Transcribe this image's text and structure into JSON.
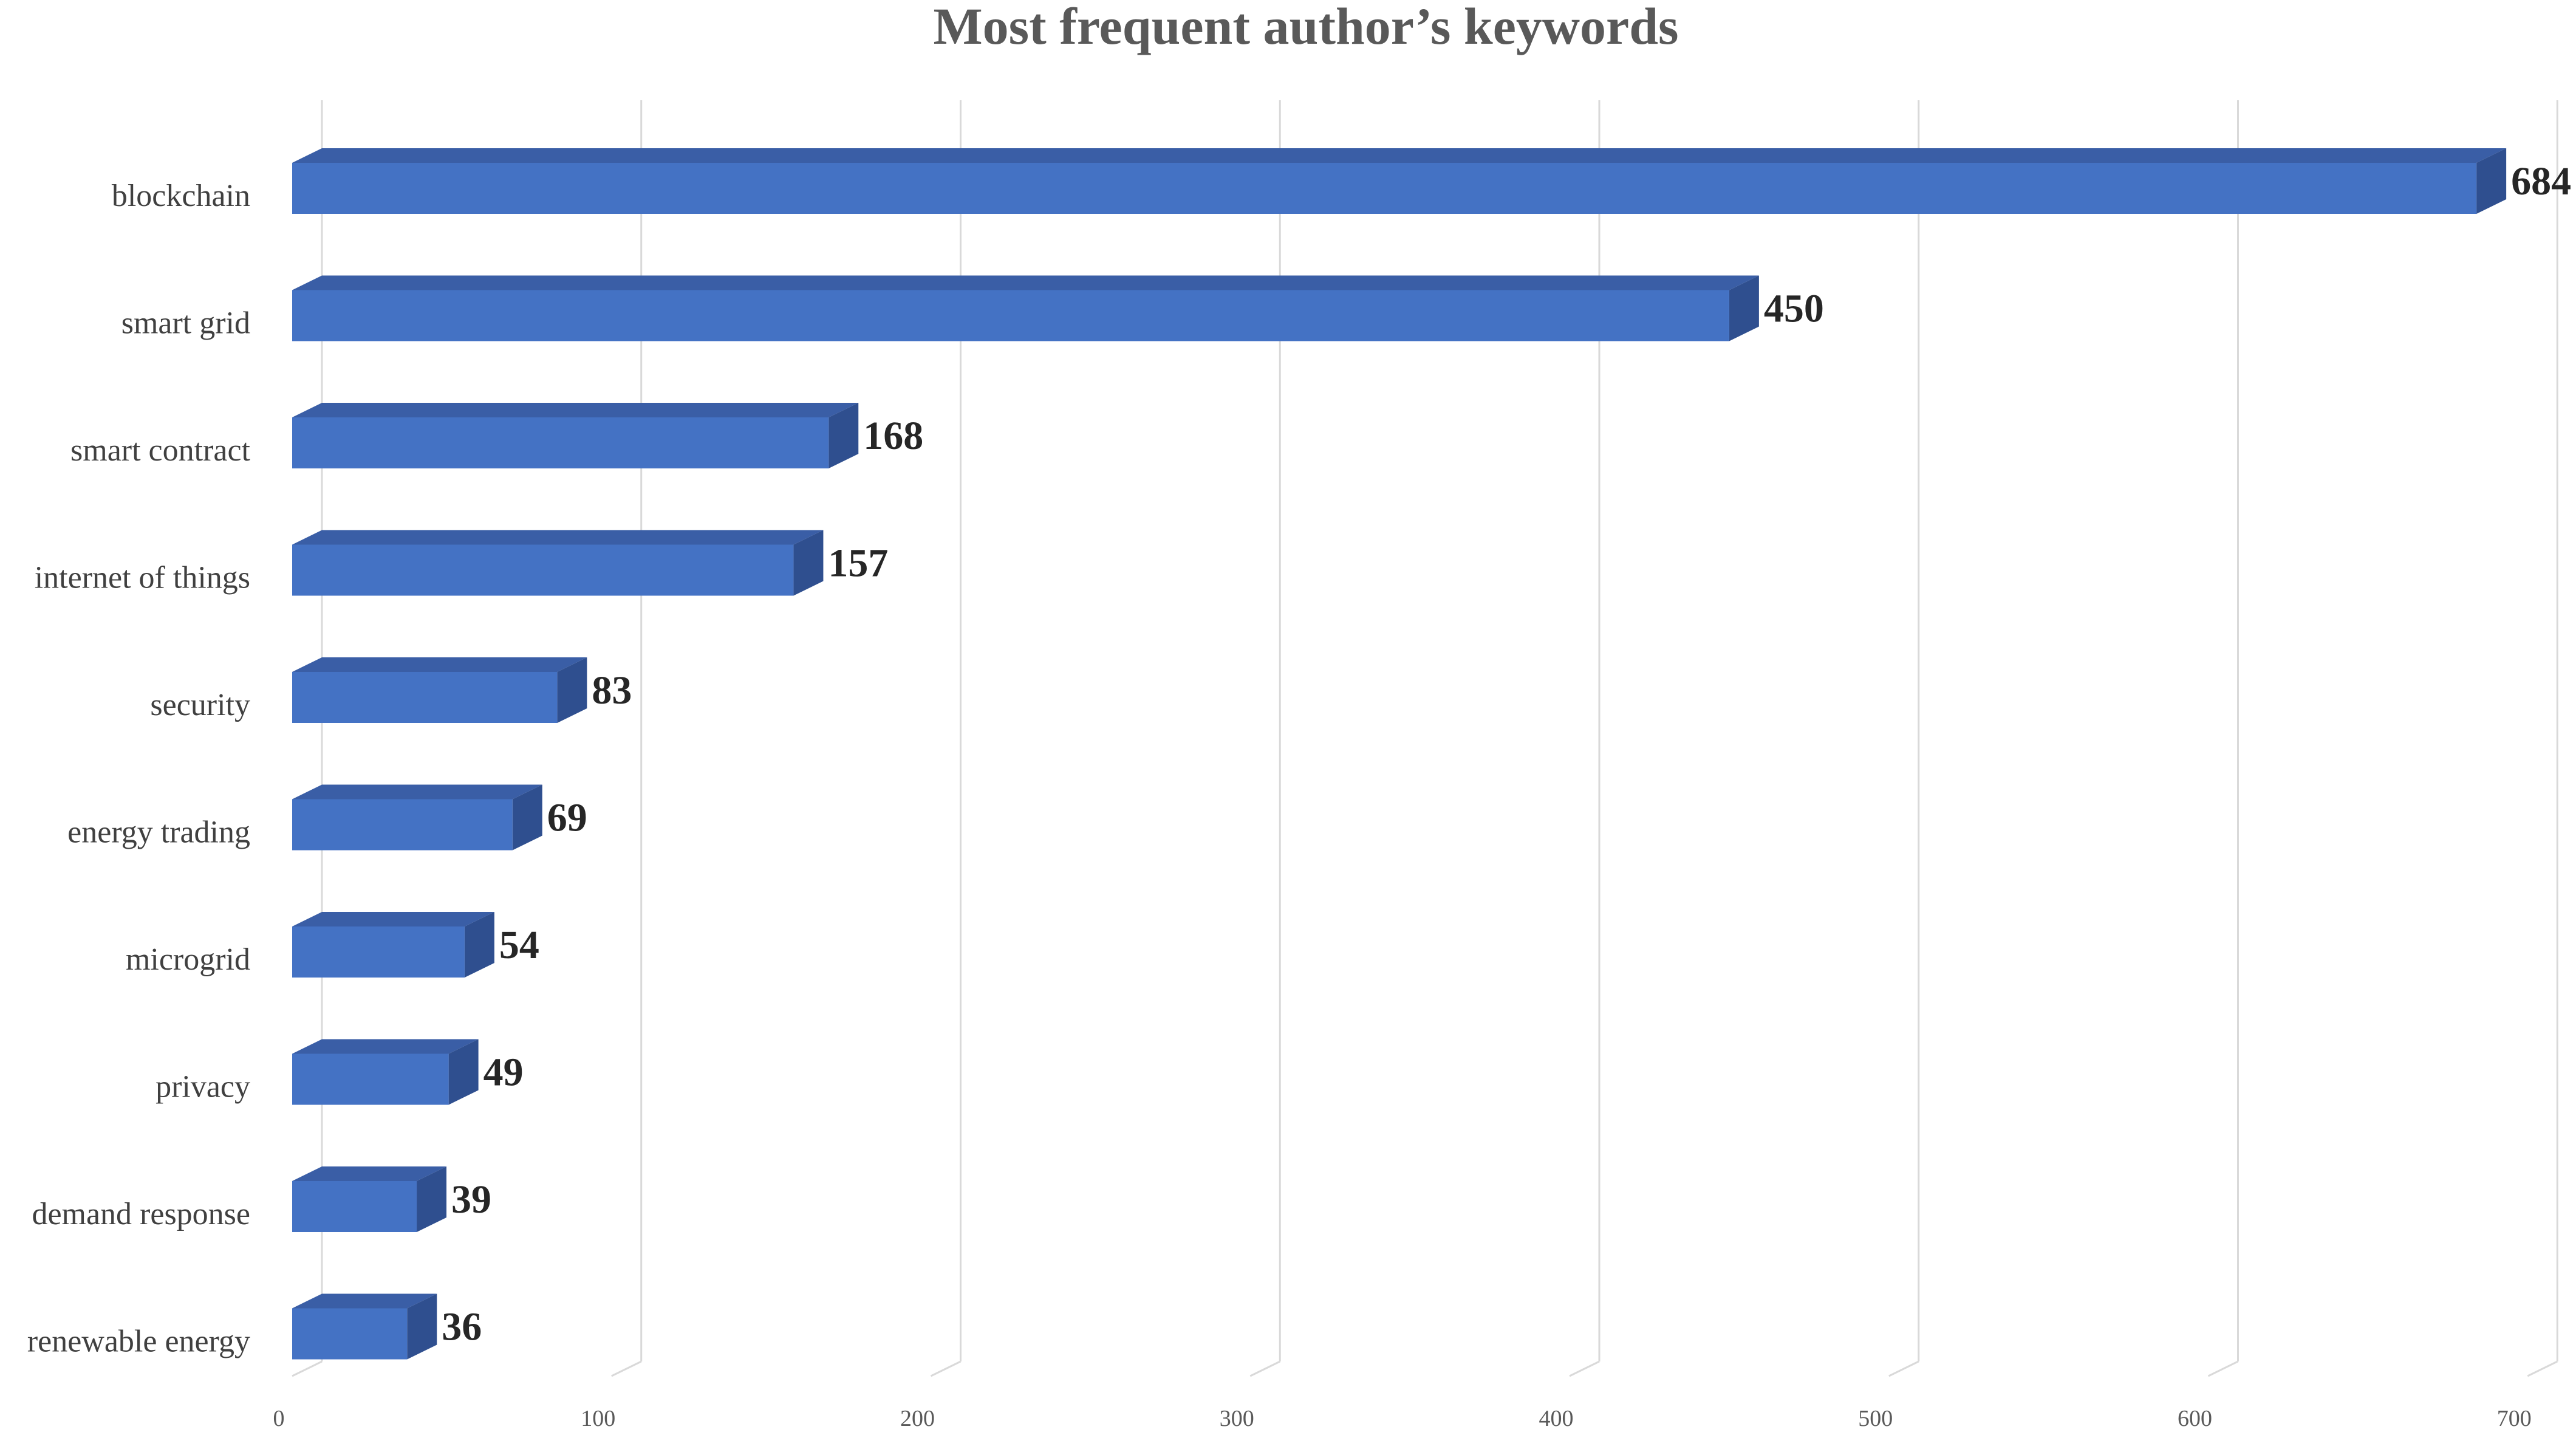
{
  "chart_data": {
    "type": "bar",
    "orientation": "horizontal",
    "style": "3d",
    "title": "Most frequent author’s keywords",
    "xlabel": "",
    "ylabel": "",
    "categories": [
      "blockchain",
      "smart grid",
      "smart contract",
      "internet of things",
      "security",
      "energy trading",
      "microgrid",
      "privacy",
      "demand response",
      "renewable energy"
    ],
    "values": [
      684,
      450,
      168,
      157,
      83,
      69,
      54,
      49,
      39,
      36
    ],
    "xlim": [
      0,
      700
    ],
    "x_ticks": [
      0,
      100,
      200,
      300,
      400,
      500,
      600,
      700
    ],
    "x_tick_labels": [
      "0",
      "100",
      "200",
      "300",
      "400",
      "500",
      "600",
      "700"
    ],
    "grid": "vertical",
    "legend": "none",
    "data_labels": true,
    "colors": {
      "bar_front": "#4472c4",
      "bar_top": "#3a5ea6",
      "bar_side": "#2f4f8f",
      "grid": "#d9d9d9",
      "title": "#595959"
    }
  }
}
